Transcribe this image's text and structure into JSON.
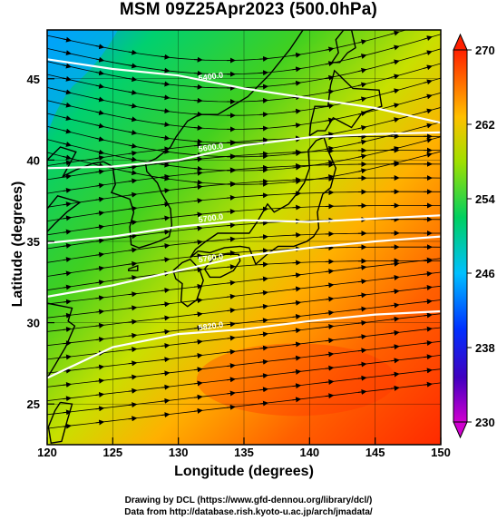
{
  "title": "MSM 09Z25Apr2023 (500.0hPa)",
  "x_axis": {
    "label": "Longitude (degrees)",
    "range": [
      120,
      150
    ],
    "ticks": [
      "120",
      "125",
      "130",
      "135",
      "140",
      "145",
      "150"
    ]
  },
  "y_axis": {
    "label": "Latitude  (degrees)",
    "range": [
      22.5,
      48
    ],
    "ticks": [
      "25",
      "30",
      "35",
      "40",
      "45"
    ]
  },
  "colorbar": {
    "range": [
      230,
      270
    ],
    "labels": [
      "270",
      "262",
      "254",
      "246",
      "238",
      "230"
    ],
    "colors": [
      "#c000c0",
      "#0000c0",
      "#0060ff",
      "#00c8ff",
      "#00e0a0",
      "#20d040",
      "#80e000",
      "#e0f000",
      "#ffc000",
      "#ff6000",
      "#ff2000"
    ]
  },
  "contours": [
    {
      "label": "5400.0",
      "lats": [
        46.2,
        45.6,
        45.2,
        44.4,
        43.8,
        43.2,
        42.3
      ]
    },
    {
      "label": "5600.0",
      "lats": [
        39.5,
        39.6,
        40.0,
        40.9,
        41.4,
        41.6,
        41.7
      ]
    },
    {
      "label": "5700.0",
      "lats": [
        34.9,
        35.3,
        35.9,
        36.3,
        36.2,
        36.4,
        36.6
      ]
    },
    {
      "label": "5760.0",
      "lats": [
        31.6,
        32.3,
        33.2,
        34.1,
        34.6,
        35.0,
        35.3
      ]
    },
    {
      "label": "5820.0",
      "lats": [
        26.6,
        28.5,
        29.3,
        29.6,
        30.1,
        30.5,
        30.7
      ]
    }
  ],
  "contour_label_text": "5400.0",
  "credits": {
    "line1": "Drawing by DCL (https://www.gfd-dennou.org/library/dcl/)",
    "line2": "Data from http://database.rish.kyoto-u.ac.jp/arch/jmadata/"
  }
}
